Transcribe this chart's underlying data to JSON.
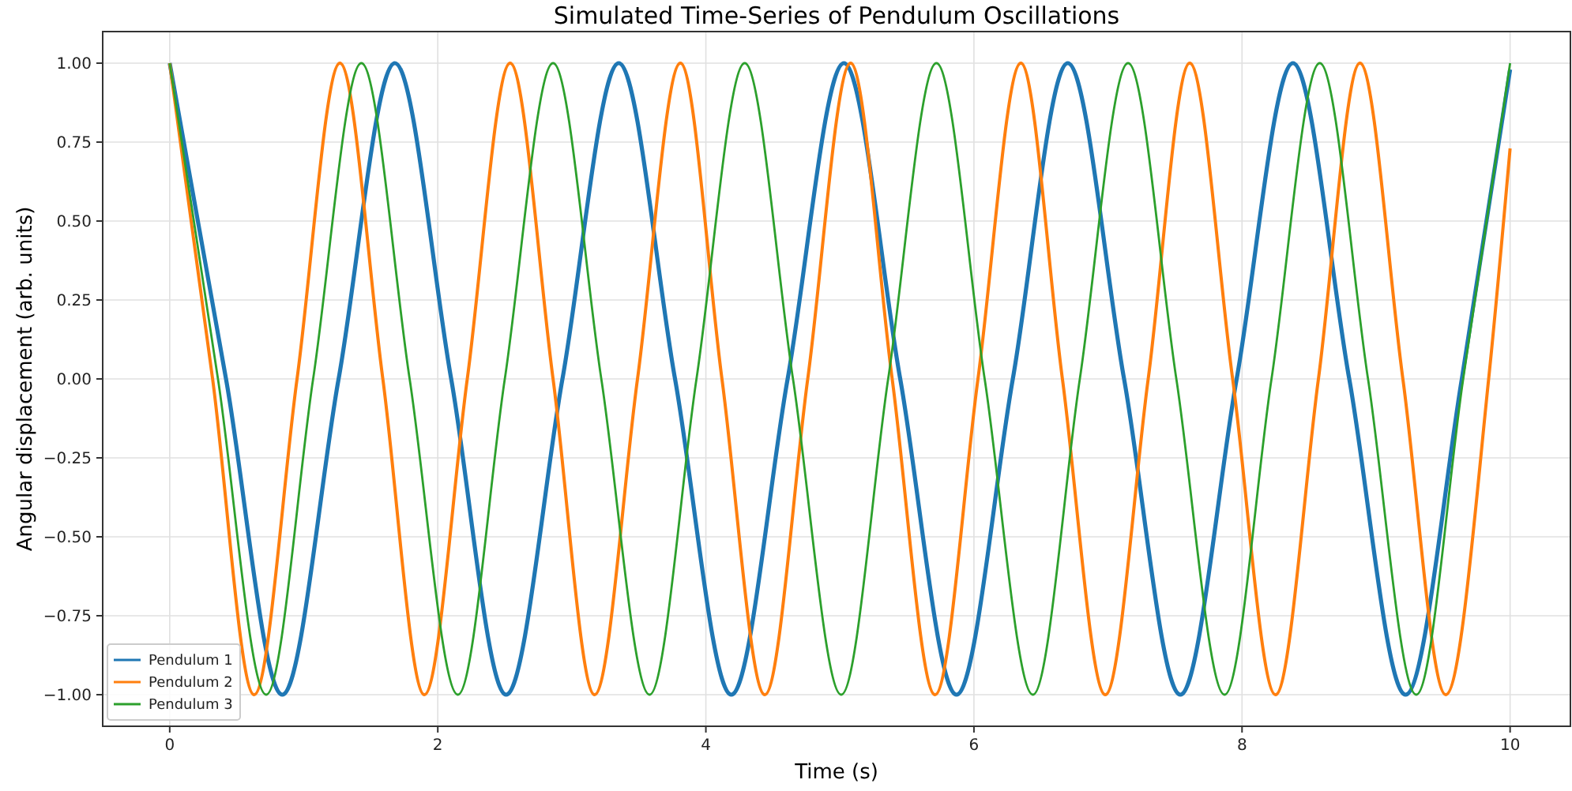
{
  "chart_data": {
    "type": "line",
    "title": "Simulated Time-Series of Pendulum Oscillations",
    "xlabel": "Time (s)",
    "ylabel": "Angular displacement (arb. units)",
    "xlim": [
      -0.5,
      10.45
    ],
    "xticks": [
      0,
      2,
      4,
      6,
      8,
      10
    ],
    "ylim": [
      -1.1,
      1.1
    ],
    "yticks": [
      {
        "value": -1,
        "label": "−1.00"
      },
      {
        "value": -0.75,
        "label": "−0.75"
      },
      {
        "value": -0.5,
        "label": "−0.50"
      },
      {
        "value": -0.25,
        "label": "−0.25"
      },
      {
        "value": 0,
        "label": "0.00"
      },
      {
        "value": 0.25,
        "label": "0.25"
      },
      {
        "value": 0.5,
        "label": "0.50"
      },
      {
        "value": 0.75,
        "label": "0.75"
      },
      {
        "value": 1,
        "label": "1.00"
      }
    ],
    "grid": true,
    "legend": "bottom left",
    "marker": "none",
    "line_style": "solid",
    "series": [
      {
        "name": "Pendulum 1",
        "color": "#1f77b4",
        "x": [
          0,
          0.42,
          0.84,
          1.26,
          1.68,
          2.1,
          2.51,
          2.93,
          3.35,
          3.77,
          4.19,
          4.61,
          5.03,
          5.45,
          5.87,
          6.29,
          6.7,
          7.12,
          7.54,
          7.96,
          8.38,
          8.8,
          9.22,
          9.64,
          10
        ],
        "values": [
          1,
          0,
          -1,
          0,
          1,
          0,
          -1,
          0,
          1,
          0,
          -1,
          0,
          1,
          0,
          -1,
          0,
          1,
          0,
          -1,
          0,
          1,
          0,
          -1,
          0,
          0.98
        ]
      },
      {
        "name": "Pendulum 2",
        "color": "#ff7f0e",
        "x": [
          0,
          0.32,
          0.63,
          0.95,
          1.27,
          1.59,
          1.9,
          2.22,
          2.54,
          2.86,
          3.17,
          3.49,
          3.81,
          4.12,
          4.44,
          4.76,
          5.08,
          5.39,
          5.71,
          6.03,
          6.35,
          6.66,
          6.98,
          7.3,
          7.61,
          7.93,
          8.25,
          8.57,
          8.88,
          9.2,
          9.52,
          9.84,
          10
        ],
        "values": [
          1,
          0,
          -1,
          0,
          1,
          0,
          -1,
          0,
          1,
          0,
          -1,
          0,
          1,
          0,
          -1,
          0,
          1,
          0,
          -1,
          0,
          1,
          0,
          -1,
          0,
          1,
          0,
          -1,
          0,
          1,
          0,
          -1,
          0,
          0.73
        ]
      },
      {
        "name": "Pendulum 3",
        "color": "#2ca02c",
        "x": [
          0,
          0.36,
          0.72,
          1.07,
          1.43,
          1.79,
          2.15,
          2.5,
          2.86,
          3.22,
          3.58,
          3.93,
          4.29,
          4.65,
          5.01,
          5.36,
          5.72,
          6.08,
          6.44,
          6.79,
          7.15,
          7.51,
          7.87,
          8.22,
          8.58,
          8.94,
          9.3,
          9.65,
          10
        ],
        "values": [
          1,
          0,
          -1,
          0,
          1,
          0,
          -1,
          0,
          1,
          0,
          -1,
          0,
          1,
          0,
          -1,
          0,
          1,
          0,
          -1,
          0,
          1,
          0,
          -1,
          0,
          1,
          0,
          -1,
          0,
          1
        ]
      }
    ]
  }
}
